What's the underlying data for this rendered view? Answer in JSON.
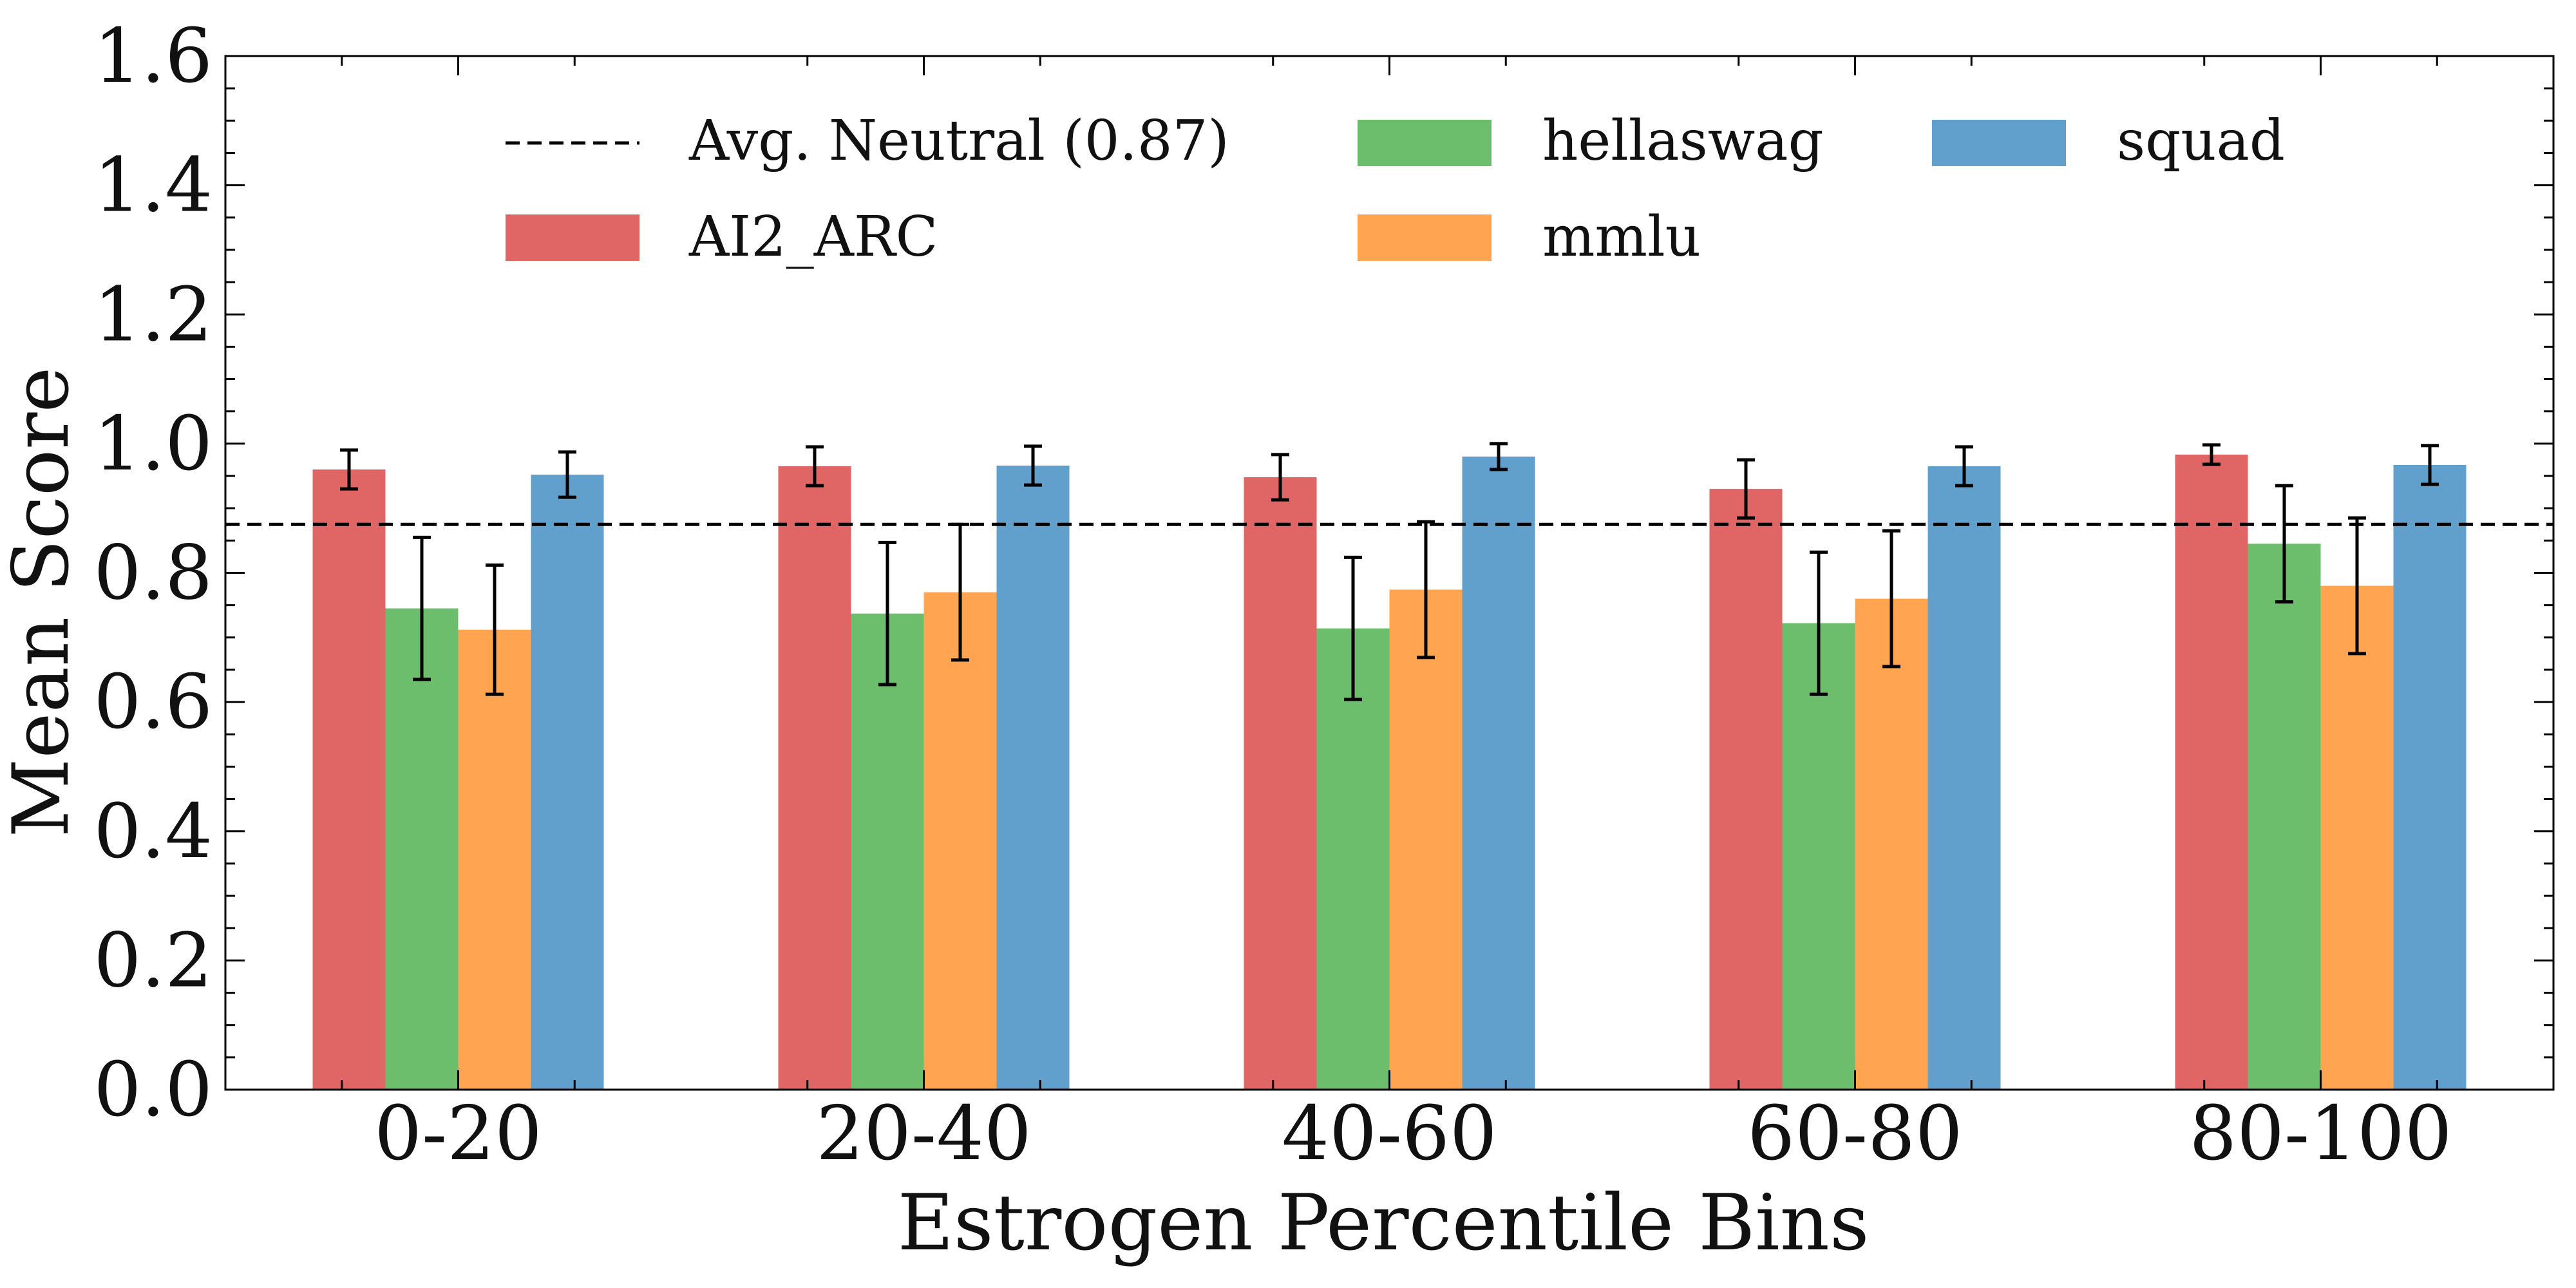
{
  "chart_data": {
    "type": "bar",
    "title": "",
    "xlabel": "Estrogen Percentile Bins",
    "ylabel": "Mean Score",
    "ylim": [
      0,
      1.6
    ],
    "yticks": [
      "0.0",
      "0.2",
      "0.4",
      "0.6",
      "0.8",
      "1.0",
      "1.2",
      "1.4",
      "1.6"
    ],
    "categories": [
      "0-20",
      "20-40",
      "40-60",
      "60-80",
      "80-100"
    ],
    "series": [
      {
        "name": "AI2_ARC",
        "color": "#e06666",
        "values": [
          0.96,
          0.965,
          0.948,
          0.93,
          0.983
        ],
        "err": [
          0.03,
          0.03,
          0.035,
          0.045,
          0.015
        ]
      },
      {
        "name": "hellaswag",
        "color": "#6cbe6c",
        "values": [
          0.745,
          0.737,
          0.714,
          0.722,
          0.845
        ],
        "err": [
          0.11,
          0.11,
          0.11,
          0.11,
          0.09
        ]
      },
      {
        "name": "mmlu",
        "color": "#ffa552",
        "values": [
          0.712,
          0.77,
          0.774,
          0.76,
          0.78
        ],
        "err": [
          0.1,
          0.105,
          0.105,
          0.105,
          0.105
        ]
      },
      {
        "name": "squad",
        "color": "#61a0cc",
        "values": [
          0.952,
          0.966,
          0.98,
          0.965,
          0.967
        ],
        "err": [
          0.035,
          0.03,
          0.02,
          0.03,
          0.03
        ]
      }
    ],
    "reference_line": {
      "label": "Avg. Neutral (0.87)",
      "value": 0.875,
      "style": "dashed",
      "color": "#000000"
    },
    "legend": {
      "placement": "top",
      "columns": 3
    },
    "grid": false
  }
}
